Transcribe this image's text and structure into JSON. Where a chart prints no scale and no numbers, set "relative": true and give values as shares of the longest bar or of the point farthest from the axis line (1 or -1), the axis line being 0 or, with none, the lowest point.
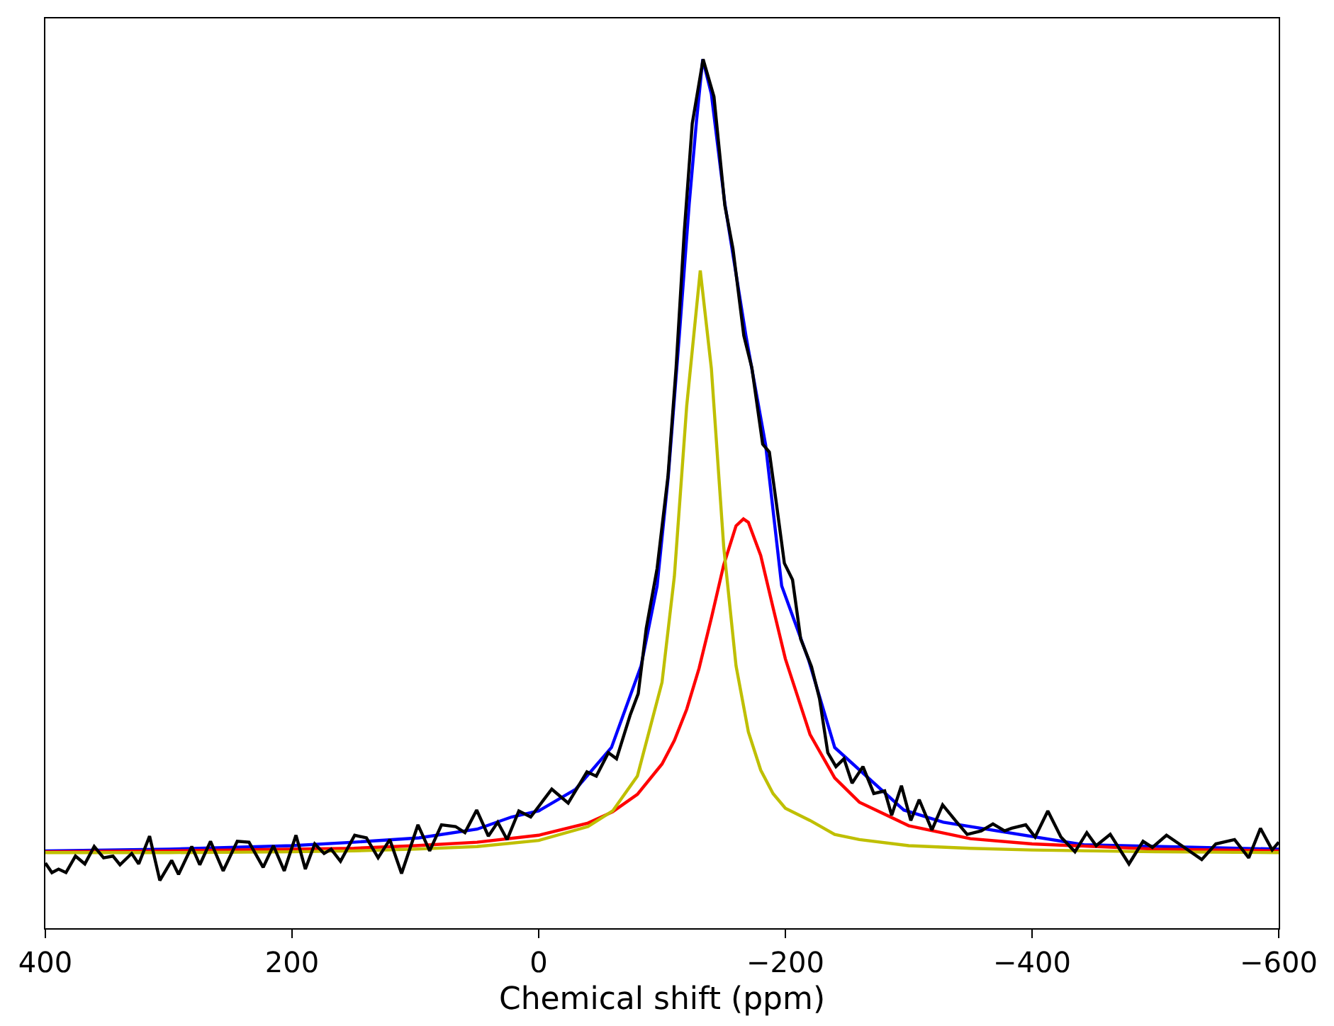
{
  "chart_data": {
    "type": "line",
    "relative": true,
    "xlabel": "Chemical shift (ppm)",
    "xlim": [
      400,
      -600
    ],
    "xticks": [
      400,
      200,
      0,
      {
        "value": -200,
        "label": "−200"
      },
      {
        "value": -400,
        "label": "−400"
      },
      {
        "value": -600,
        "label": "−600"
      }
    ],
    "marker": "none",
    "line_style": "solid",
    "series": [
      {
        "color": "#0000ff",
        "x": [
          400,
          300,
          250,
          200,
          150,
          97,
          50,
          22,
          0,
          -30,
          -59,
          -83,
          -96,
          -105,
          -114,
          -122,
          -128,
          -133,
          -140,
          -151,
          -168,
          -184,
          -197,
          -219,
          -240,
          -296,
          -328,
          -442,
          -600
        ],
        "values": [
          0.089,
          0.091,
          0.093,
          0.095,
          0.099,
          0.104,
          0.114,
          0.128,
          0.135,
          0.16,
          0.208,
          0.302,
          0.394,
          0.519,
          0.682,
          0.833,
          0.93,
          1.0,
          0.96,
          0.833,
          0.682,
          0.556,
          0.394,
          0.308,
          0.208,
          0.136,
          0.122,
          0.096,
          0.091
        ]
      },
      {
        "color": "#ff0000",
        "x": [
          400,
          300,
          200,
          150,
          100,
          50,
          0,
          -40,
          -60,
          -80,
          -100,
          -110,
          -120,
          -130,
          -140,
          -150,
          -160,
          -166,
          -170,
          -180,
          -190,
          -200,
          -220,
          -240,
          -260,
          -300,
          -350,
          -400,
          -500,
          -600
        ],
        "values": [
          0.088,
          0.089,
          0.091,
          0.092,
          0.095,
          0.099,
          0.107,
          0.121,
          0.134,
          0.154,
          0.189,
          0.216,
          0.252,
          0.299,
          0.357,
          0.418,
          0.463,
          0.471,
          0.467,
          0.429,
          0.369,
          0.31,
          0.223,
          0.173,
          0.145,
          0.118,
          0.103,
          0.097,
          0.091,
          0.089
        ]
      },
      {
        "color": "#bfbf00",
        "x": [
          400,
          300,
          200,
          150,
          100,
          50,
          0,
          -40,
          -60,
          -80,
          -100,
          -110,
          -120,
          -131,
          -140,
          -150,
          -160,
          -170,
          -180,
          -190,
          -200,
          -220,
          -240,
          -260,
          -300,
          -350,
          -400,
          -500,
          -600
        ],
        "values": [
          0.087,
          0.087,
          0.088,
          0.089,
          0.091,
          0.094,
          0.101,
          0.117,
          0.135,
          0.175,
          0.283,
          0.405,
          0.601,
          0.757,
          0.644,
          0.439,
          0.302,
          0.226,
          0.182,
          0.155,
          0.138,
          0.124,
          0.108,
          0.102,
          0.095,
          0.092,
          0.09,
          0.088,
          0.087
        ]
      },
      {
        "color": "#000000",
        "x": [
          400,
          394.7,
          389.3,
          383.3,
          375.6,
          368,
          360.4,
          352.8,
          345.2,
          339.5,
          330,
          324.3,
          315.5,
          307.2,
          297.6,
          292,
          281.3,
          274.8,
          266.1,
          255.8,
          244.4,
          234.9,
          223.4,
          215.1,
          206.3,
          196.8,
          189.2,
          181.6,
          174,
          168.3,
          160.7,
          149.2,
          139.7,
          130.2,
          120.7,
          111.2,
          97.9,
          88.4,
          78.8,
          67.4,
          59.8,
          50.3,
          40.8,
          33.2,
          25.6,
          16.1,
          6.5,
          -10.6,
          -23.9,
          -39.1,
          -46.7,
          -56.5,
          -63.1,
          -74.1,
          -80.7,
          -87.2,
          -96,
          -104.8,
          -111.4,
          -118,
          -124.5,
          -133.3,
          -142.1,
          -150.9,
          -157.5,
          -166.3,
          -172.8,
          -181.6,
          -187,
          -192.7,
          -199.2,
          -205.8,
          -212.4,
          -221.2,
          -227.7,
          -234.4,
          -241,
          -247.5,
          -254.1,
          -262.9,
          -271.7,
          -280.5,
          -286.2,
          -294.1,
          -301.7,
          -308.5,
          -318.8,
          -327.5,
          -337.8,
          -347.4,
          -358.8,
          -368.3,
          -377.8,
          -383.5,
          -394.9,
          -402.5,
          -412.8,
          -423.4,
          -434.8,
          -444.4,
          -452,
          -463.4,
          -478.6,
          -490,
          -497.6,
          -509,
          -522.4,
          -537.6,
          -549,
          -564.2,
          -575.7,
          -585.2,
          -594.7,
          -600
        ],
        "values": [
          0.075,
          0.064,
          0.068,
          0.064,
          0.083,
          0.074,
          0.094,
          0.081,
          0.083,
          0.073,
          0.086,
          0.074,
          0.106,
          0.055,
          0.078,
          0.062,
          0.094,
          0.073,
          0.1,
          0.066,
          0.1,
          0.099,
          0.07,
          0.095,
          0.066,
          0.107,
          0.068,
          0.097,
          0.086,
          0.091,
          0.077,
          0.107,
          0.104,
          0.081,
          0.102,
          0.063,
          0.119,
          0.089,
          0.119,
          0.117,
          0.11,
          0.136,
          0.106,
          0.122,
          0.102,
          0.135,
          0.128,
          0.16,
          0.144,
          0.18,
          0.175,
          0.202,
          0.195,
          0.245,
          0.27,
          0.345,
          0.414,
          0.52,
          0.645,
          0.801,
          0.926,
          1.0,
          0.957,
          0.832,
          0.782,
          0.682,
          0.645,
          0.557,
          0.548,
          0.489,
          0.42,
          0.401,
          0.333,
          0.301,
          0.264,
          0.202,
          0.186,
          0.195,
          0.167,
          0.186,
          0.155,
          0.158,
          0.13,
          0.164,
          0.124,
          0.148,
          0.113,
          0.142,
          0.124,
          0.108,
          0.112,
          0.12,
          0.112,
          0.115,
          0.119,
          0.105,
          0.135,
          0.105,
          0.088,
          0.11,
          0.095,
          0.108,
          0.074,
          0.1,
          0.093,
          0.107,
          0.094,
          0.079,
          0.097,
          0.102,
          0.081,
          0.115,
          0.09,
          0.099
        ]
      }
    ]
  }
}
